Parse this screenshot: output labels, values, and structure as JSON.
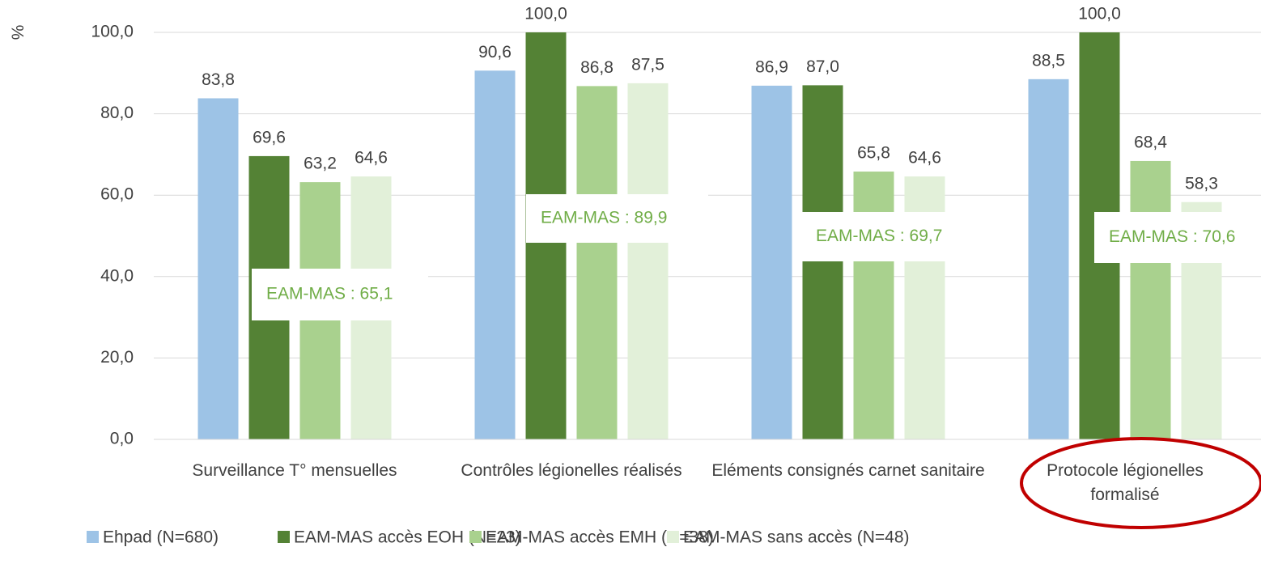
{
  "chart_data": {
    "type": "bar",
    "y_label": "%",
    "categories": [
      "Surveillance T° mensuelles",
      "Contrôles légionelles réalisés",
      "Eléments consignés carnet sanitaire",
      "Protocole légionelles formalisé"
    ],
    "series": [
      {
        "name": "Ehpad (N=680)",
        "color": "#9dc3e6",
        "values": [
          83.8,
          90.6,
          86.9,
          88.5
        ],
        "value_labels": [
          "83,8",
          "90,6",
          "86,9",
          "88,5"
        ]
      },
      {
        "name": "EAM-MAS accès EOH (N=23)",
        "color": "#548235",
        "values": [
          69.6,
          100.0,
          87.0,
          100.0
        ],
        "value_labels": [
          "69,6",
          "100,0",
          "87,0",
          "100,0"
        ]
      },
      {
        "name": "EAM-MAS accès EMH (N=38)",
        "color": "#a9d18e",
        "values": [
          63.2,
          86.8,
          65.8,
          68.4
        ],
        "value_labels": [
          "63,2",
          "86,8",
          "65,8",
          "68,4"
        ]
      },
      {
        "name": "EAM-MAS sans accès (N=48)",
        "color": "#e2f0d9",
        "values": [
          64.6,
          87.5,
          64.6,
          58.3
        ],
        "value_labels": [
          "64,6",
          "87,5",
          "64,6",
          "58,3"
        ]
      }
    ],
    "annotations": [
      "EAM-MAS : 65,1",
      "EAM-MAS : 89,9",
      "EAM-MAS : 69,7",
      "EAM-MAS : 70,6"
    ],
    "ylim": [
      0,
      100
    ],
    "yticks": [
      {
        "value": 0,
        "label": "0,0"
      },
      {
        "value": 20,
        "label": "20,0"
      },
      {
        "value": 40,
        "label": "40,0"
      },
      {
        "value": 60,
        "label": "60,0"
      },
      {
        "value": 80,
        "label": "80,0"
      },
      {
        "value": 100,
        "label": "100,0"
      }
    ],
    "grid": true,
    "legend": "bottom"
  }
}
